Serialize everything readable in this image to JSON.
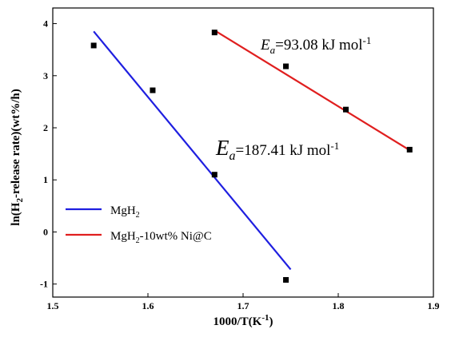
{
  "chart_data": {
    "type": "scatter",
    "xlabel": "1000/T(K-1)",
    "ylabel": "ln(H2-release rate)(wt%/h)",
    "xlim": [
      1.5,
      1.9
    ],
    "ylim": [
      -1.25,
      4.3
    ],
    "xticks": [
      "1.5",
      "1.6",
      "1.7",
      "1.8",
      "1.9"
    ],
    "yticks": [
      "-1",
      "0",
      "1",
      "2",
      "3",
      "4"
    ],
    "grid": false,
    "legend_position": "bottom-left",
    "series": [
      {
        "name": "MgH2",
        "color": "#1f1fe0",
        "marker_color": "#000000",
        "x": [
          1.543,
          1.605,
          1.67,
          1.745
        ],
        "y": [
          3.58,
          2.72,
          1.1,
          -0.92
        ],
        "fit": {
          "x": [
            1.543,
            1.75
          ],
          "y": [
            3.85,
            -0.72
          ]
        },
        "annotation": "Ea=187.41 kJ mol-1"
      },
      {
        "name": "MgH2-10wt% Ni@C",
        "color": "#e01f1f",
        "marker_color": "#000000",
        "x": [
          1.67,
          1.745,
          1.808,
          1.875
        ],
        "y": [
          3.83,
          3.18,
          2.35,
          1.58
        ],
        "fit": {
          "x": [
            1.67,
            1.875
          ],
          "y": [
            3.87,
            1.57
          ]
        },
        "annotation": "Ea=93.08 kJ mol-1"
      }
    ]
  }
}
